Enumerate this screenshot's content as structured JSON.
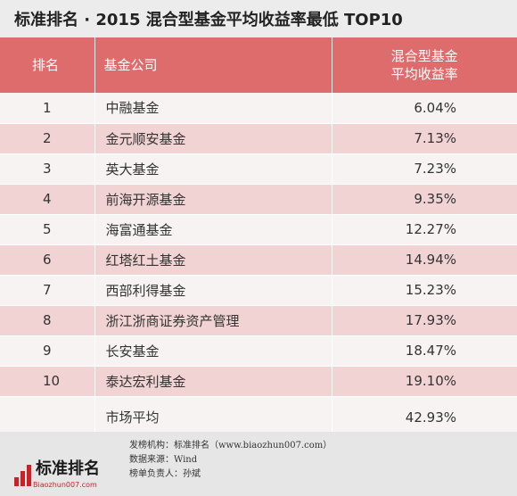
{
  "title": "标准排名 · 2015 混合型基金平均收益率最低 TOP10",
  "table": {
    "headers": {
      "rank": "排名",
      "company": "基金公司",
      "return_line1": "混合型基金",
      "return_line2": "平均收益率"
    },
    "rows": [
      {
        "rank": "1",
        "company": "中融基金",
        "return": "6.04%"
      },
      {
        "rank": "2",
        "company": "金元顺安基金",
        "return": "7.13%"
      },
      {
        "rank": "3",
        "company": "英大基金",
        "return": "7.23%"
      },
      {
        "rank": "4",
        "company": "前海开源基金",
        "return": "9.35%"
      },
      {
        "rank": "5",
        "company": "海富通基金",
        "return": "12.27%"
      },
      {
        "rank": "6",
        "company": "红塔红土基金",
        "return": "14.94%"
      },
      {
        "rank": "7",
        "company": "西部利得基金",
        "return": "15.23%"
      },
      {
        "rank": "8",
        "company": "浙江浙商证券资产管理",
        "return": "17.93%"
      },
      {
        "rank": "9",
        "company": "长安基金",
        "return": "18.47%"
      },
      {
        "rank": "10",
        "company": "泰达宏利基金",
        "return": "19.10%"
      }
    ],
    "average": {
      "label": "市场平均",
      "return": "42.93%"
    }
  },
  "footer": {
    "logo_text": "标准排名",
    "logo_url": "Biaozhun007.com",
    "publisher": "发榜机构：标准排名（www.biaozhun007.com）",
    "data_source": "数据来源：Wind",
    "responsible": "榜单负责人：孙斌"
  },
  "colors": {
    "header_bg": "#de6c6d",
    "row_light": "#f8f3f3",
    "row_pink": "#f2d3d3",
    "logo_red": "#cf2027"
  }
}
